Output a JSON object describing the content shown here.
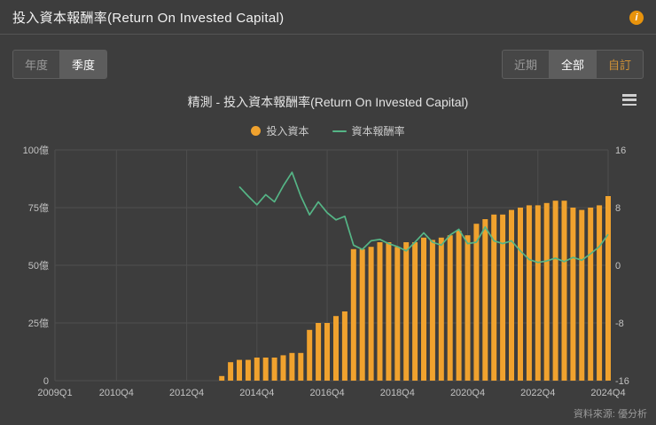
{
  "header": {
    "title": "投入資本報酬率(Return On Invested Capital)",
    "info_icon": "i"
  },
  "controls": {
    "period": [
      {
        "label": "年度",
        "active": false
      },
      {
        "label": "季度",
        "active": true
      }
    ],
    "range": [
      {
        "label": "近期",
        "active": false
      },
      {
        "label": "全部",
        "active": true
      },
      {
        "label": "自訂",
        "active": false,
        "accent": true
      }
    ]
  },
  "chart": {
    "title": "精測 - 投入資本報酬率(Return On Invested Capital)",
    "legend": [
      {
        "label": "投入資本",
        "type": "bar"
      },
      {
        "label": "資本報酬率",
        "type": "line"
      }
    ],
    "source": "資料來源: 優分析"
  },
  "colors": {
    "bar": "#f0a22e",
    "line": "#55b586",
    "grid": "#4e4e4e",
    "axis_text": "#c2c2c2",
    "accent": "#e8930c"
  },
  "chart_data": {
    "type": "bar+line",
    "title": "精測 - 投入資本報酬率(Return On Invested Capital)",
    "x_axis": {
      "first": "2009Q1",
      "last": "2024Q4",
      "total_quarters": 64,
      "tick_labels": [
        "2009Q1",
        "2010Q4",
        "2012Q4",
        "2014Q4",
        "2016Q4",
        "2018Q4",
        "2020Q4",
        "2022Q4",
        "2024Q4"
      ],
      "tick_indices": [
        0,
        7,
        15,
        23,
        31,
        39,
        47,
        55,
        63
      ],
      "data_start_index": 19,
      "data_quarters": [
        "2013Q4",
        "2014Q1",
        "2014Q2",
        "2014Q3",
        "2014Q4",
        "2015Q1",
        "2015Q2",
        "2015Q3",
        "2015Q4",
        "2016Q1",
        "2016Q2",
        "2016Q3",
        "2016Q4",
        "2017Q1",
        "2017Q2",
        "2017Q3",
        "2017Q4",
        "2018Q1",
        "2018Q2",
        "2018Q3",
        "2018Q4",
        "2019Q1",
        "2019Q2",
        "2019Q3",
        "2019Q4",
        "2020Q1",
        "2020Q2",
        "2020Q3",
        "2020Q4",
        "2021Q1",
        "2021Q2",
        "2021Q3",
        "2021Q4",
        "2022Q1",
        "2022Q2",
        "2022Q3",
        "2022Q4",
        "2023Q1",
        "2023Q2",
        "2023Q3",
        "2023Q4",
        "2024Q1",
        "2024Q2",
        "2024Q3",
        "2024Q4"
      ]
    },
    "left_axis": {
      "ticks": [
        "100億",
        "75億",
        "50億",
        "25億",
        "0"
      ],
      "max": 100,
      "min": 0,
      "unit": "億"
    },
    "right_axis": {
      "ticks": [
        "16",
        "8",
        "0",
        "-8",
        "-16"
      ],
      "max": 16,
      "min": -16
    },
    "series": [
      {
        "name": "投入資本",
        "type": "bar",
        "unit": "億",
        "values": [
          2,
          8,
          9,
          9,
          10,
          10,
          10,
          11,
          12,
          12,
          22,
          25,
          25,
          28,
          30,
          57,
          57,
          58,
          60,
          60,
          58,
          60,
          60,
          62,
          61,
          62,
          63,
          65,
          63,
          68,
          70,
          72,
          72,
          74,
          75,
          76,
          76,
          77,
          78,
          78,
          75,
          74,
          75,
          76,
          80
        ]
      },
      {
        "name": "資本報酬率",
        "type": "line",
        "unit": "%",
        "values": [
          null,
          null,
          10.9,
          9.6,
          8.4,
          9.8,
          8.8,
          11.0,
          12.9,
          9.6,
          7.0,
          8.8,
          7.3,
          6.3,
          6.8,
          2.8,
          2.2,
          3.4,
          3.6,
          3.0,
          2.6,
          2.0,
          3.2,
          4.5,
          3.2,
          2.8,
          4.2,
          5.0,
          3.0,
          3.2,
          5.3,
          3.4,
          3.0,
          3.4,
          2.0,
          0.8,
          0.4,
          0.6,
          1.0,
          0.5,
          1.1,
          0.7,
          1.6,
          2.6,
          4.3
        ]
      }
    ],
    "grid": true,
    "legend_position": "top-center"
  }
}
